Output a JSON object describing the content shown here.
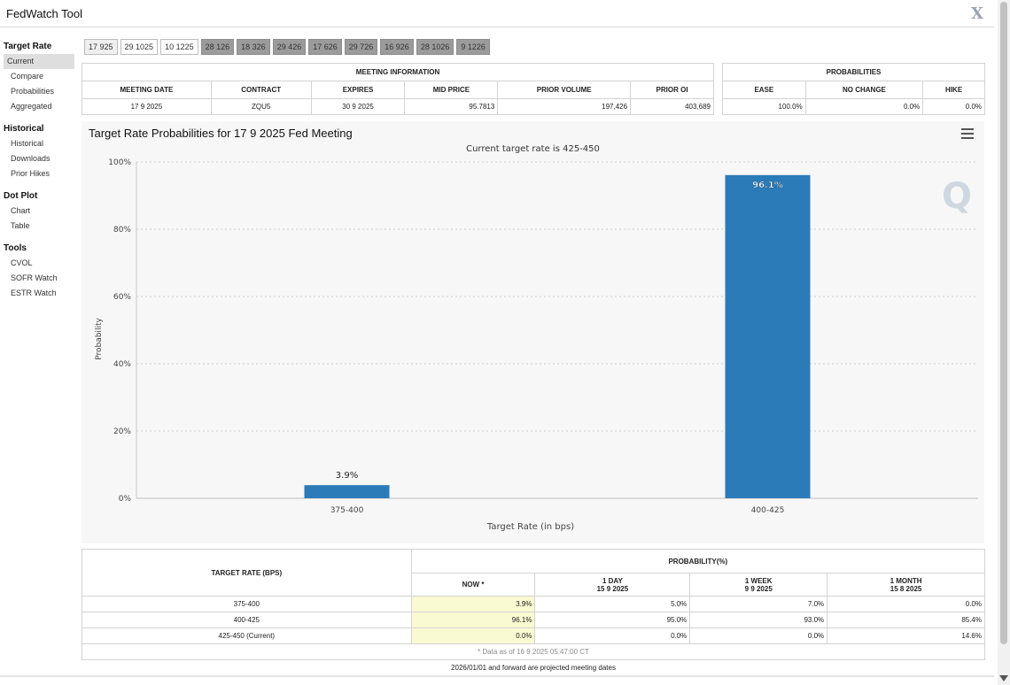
{
  "window": {
    "title": "FedWatch Tool",
    "close_label": "X"
  },
  "sidebar": {
    "sections": [
      {
        "heading": "Target Rate",
        "items": [
          "Current",
          "Compare",
          "Probabilities",
          "Aggregated"
        ]
      },
      {
        "heading": "Historical",
        "items": [
          "Historical",
          "Downloads",
          "Prior Hikes"
        ]
      },
      {
        "heading": "Dot Plot",
        "items": [
          "Chart",
          "Table"
        ]
      },
      {
        "heading": "Tools",
        "items": [
          "CVOL",
          "SOFR Watch",
          "ESTR Watch"
        ]
      }
    ]
  },
  "tabs": [
    "17 925",
    "29 1025",
    "10 1225",
    "28 126",
    "18 326",
    "29 426",
    "17 626",
    "29 726",
    "16 926",
    "28 1026",
    "9 1226"
  ],
  "meeting_info": {
    "header": "MEETING INFORMATION",
    "columns": [
      "MEETING DATE",
      "CONTRACT",
      "EXPIRES",
      "MID PRICE",
      "PRIOR VOLUME",
      "PRIOR OI"
    ],
    "row": [
      "17 9 2025",
      "ZQU5",
      "30 9 2025",
      "95.7813",
      "197,426",
      "403,689"
    ]
  },
  "probabilities": {
    "header": "PROBABILITIES",
    "columns": [
      "EASE",
      "NO CHANGE",
      "HIKE"
    ],
    "row": [
      "100.0%",
      "0.0%",
      "0.0%"
    ]
  },
  "chart_data": {
    "type": "bar",
    "title": "Target Rate Probabilities for 17 9 2025 Fed Meeting",
    "subtitle": "Current target rate is 425-450",
    "xlabel": "Target Rate (in bps)",
    "ylabel": "Probability",
    "categories": [
      "375-400",
      "400-425"
    ],
    "values": [
      3.9,
      96.1
    ],
    "data_labels": [
      "3.9%",
      "96.1%"
    ],
    "ylim": [
      0,
      100
    ],
    "yticks": [
      "0%",
      "20%",
      "40%",
      "60%",
      "80%",
      "100%"
    ],
    "bar_color": "#2b7bb9",
    "grid": true
  },
  "rates_table": {
    "col_target": "TARGET RATE (BPS)",
    "col_prob": "PROBABILITY(%)",
    "sub_columns": [
      {
        "label": "NOW *",
        "date": ""
      },
      {
        "label": "1 DAY",
        "date": "15 9 2025"
      },
      {
        "label": "1 WEEK",
        "date": "9 9 2025"
      },
      {
        "label": "1 MONTH",
        "date": "15 8 2025"
      }
    ],
    "rows": [
      {
        "rate": "375-400",
        "now": "3.9%",
        "day": "5.0%",
        "week": "7.0%",
        "month": "0.0%"
      },
      {
        "rate": "400-425",
        "now": "96.1%",
        "day": "95.0%",
        "week": "93.0%",
        "month": "85.4%"
      },
      {
        "rate": "425-450 (Current)",
        "now": "0.0%",
        "day": "0.0%",
        "week": "0.0%",
        "month": "14.6%"
      }
    ],
    "footnote": "* Data as of 16 9 2025 05:47:00 CT"
  },
  "projected_note": "2026/01/01 and forward are projected meeting dates"
}
